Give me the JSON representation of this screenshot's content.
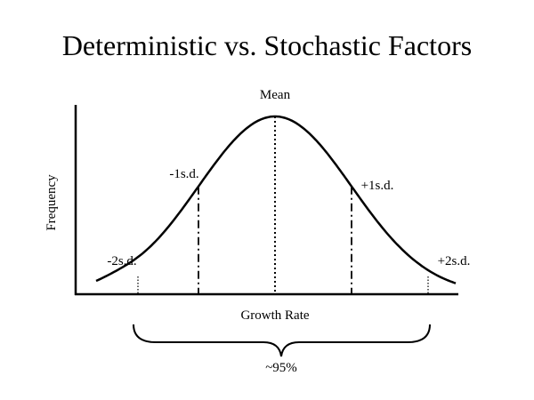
{
  "title": "Deterministic vs. Stochastic Factors",
  "axes": {
    "y_label": "Frequency",
    "x_label": "Growth Rate"
  },
  "markers": [
    {
      "label": "Mean",
      "z": 0,
      "line_style": "dotted"
    },
    {
      "label": "-1s.d.",
      "z": -1,
      "line_style": "dash-dot"
    },
    {
      "label": "+1s.d.",
      "z": 1,
      "line_style": "dash-dot"
    },
    {
      "label": "-2s.d.",
      "z": -2,
      "line_style": "fine-dotted"
    },
    {
      "label": "+2s.d.",
      "z": 2,
      "line_style": "fine-dotted"
    }
  ],
  "range_annotation": {
    "label": "~95%",
    "from_z": -2,
    "to_z": 2
  },
  "colors": {
    "ink": "#000000",
    "background": "#ffffff"
  }
}
